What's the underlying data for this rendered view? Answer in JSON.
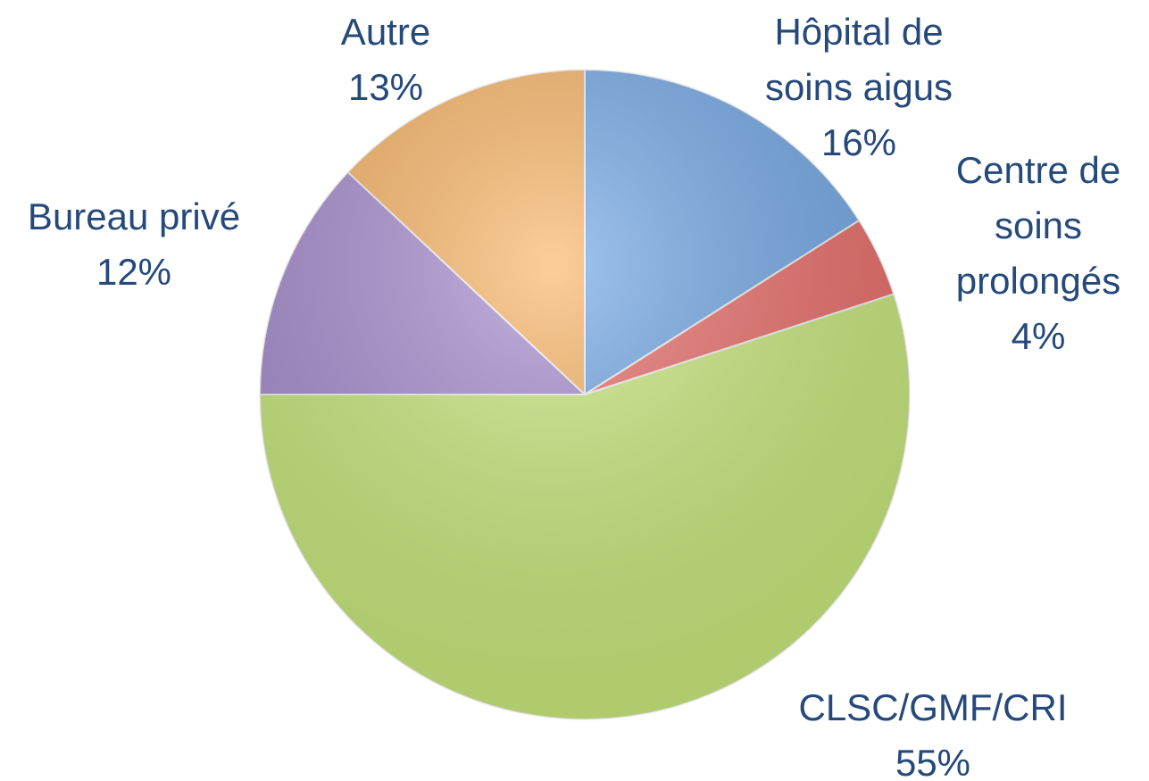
{
  "chart_data": {
    "type": "pie",
    "categories": [
      "Hôpital de soins aigus",
      "Centre de soins prolongés",
      "CLSC/GMF/CRI",
      "Bureau privé",
      "Autre"
    ],
    "values": [
      16,
      4,
      55,
      12,
      13
    ],
    "value_labels": [
      "16%",
      "4%",
      "55%",
      "12%",
      "13%"
    ],
    "colors": [
      "#6fa6e6",
      "#ea6a66",
      "#c8e97a",
      "#a68bcf",
      "#f9b362"
    ]
  }
}
